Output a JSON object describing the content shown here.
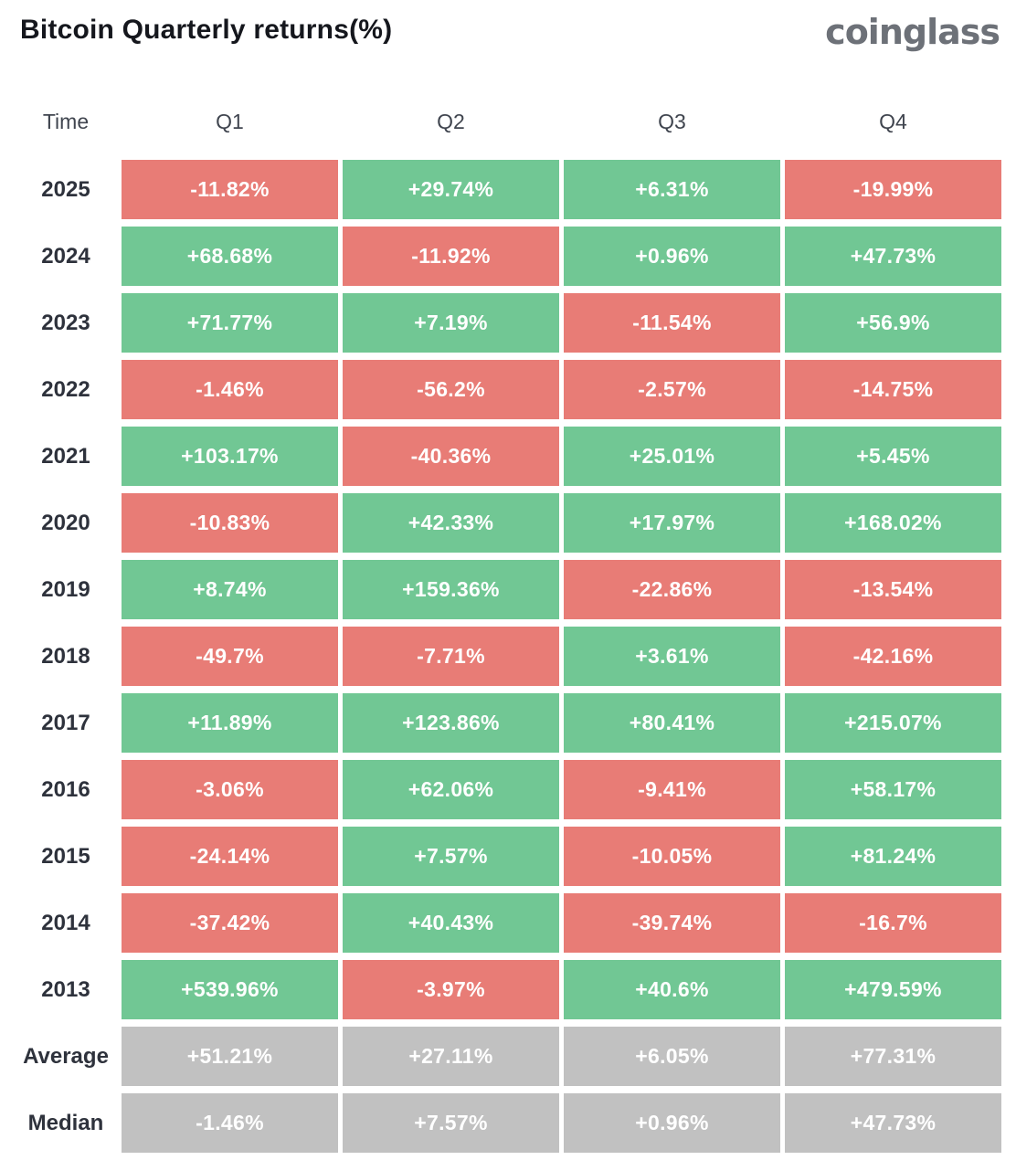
{
  "header": {
    "title": "Bitcoin Quarterly returns(%)",
    "logo_text": "coinglass"
  },
  "colors": {
    "positive": "#71c794",
    "negative": "#e87c76",
    "neutral": "#c1c1c1",
    "title_text": "#15171d",
    "logo_text": "#6d7178",
    "cell_text": "#ffffff"
  },
  "chart_data": {
    "type": "heatmap",
    "title": "Bitcoin Quarterly returns(%)",
    "columns": [
      "Time",
      "Q1",
      "Q2",
      "Q3",
      "Q4"
    ],
    "legend": "green = positive return, red = negative return, gray = summary statistics",
    "rows": [
      {
        "label": "2025",
        "kind": "year",
        "values": [
          "-11.82%",
          "+29.74%",
          "+6.31%",
          "-19.99%"
        ]
      },
      {
        "label": "2024",
        "kind": "year",
        "values": [
          "+68.68%",
          "-11.92%",
          "+0.96%",
          "+47.73%"
        ]
      },
      {
        "label": "2023",
        "kind": "year",
        "values": [
          "+71.77%",
          "+7.19%",
          "-11.54%",
          "+56.9%"
        ]
      },
      {
        "label": "2022",
        "kind": "year",
        "values": [
          "-1.46%",
          "-56.2%",
          "-2.57%",
          "-14.75%"
        ]
      },
      {
        "label": "2021",
        "kind": "year",
        "values": [
          "+103.17%",
          "-40.36%",
          "+25.01%",
          "+5.45%"
        ]
      },
      {
        "label": "2020",
        "kind": "year",
        "values": [
          "-10.83%",
          "+42.33%",
          "+17.97%",
          "+168.02%"
        ]
      },
      {
        "label": "2019",
        "kind": "year",
        "values": [
          "+8.74%",
          "+159.36%",
          "-22.86%",
          "-13.54%"
        ]
      },
      {
        "label": "2018",
        "kind": "year",
        "values": [
          "-49.7%",
          "-7.71%",
          "+3.61%",
          "-42.16%"
        ]
      },
      {
        "label": "2017",
        "kind": "year",
        "values": [
          "+11.89%",
          "+123.86%",
          "+80.41%",
          "+215.07%"
        ]
      },
      {
        "label": "2016",
        "kind": "year",
        "values": [
          "-3.06%",
          "+62.06%",
          "-9.41%",
          "+58.17%"
        ]
      },
      {
        "label": "2015",
        "kind": "year",
        "values": [
          "-24.14%",
          "+7.57%",
          "-10.05%",
          "+81.24%"
        ]
      },
      {
        "label": "2014",
        "kind": "year",
        "values": [
          "-37.42%",
          "+40.43%",
          "-39.74%",
          "-16.7%"
        ]
      },
      {
        "label": "2013",
        "kind": "year",
        "values": [
          "+539.96%",
          "-3.97%",
          "+40.6%",
          "+479.59%"
        ]
      },
      {
        "label": "Average",
        "kind": "summary",
        "values": [
          "+51.21%",
          "+27.11%",
          "+6.05%",
          "+77.31%"
        ]
      },
      {
        "label": "Median",
        "kind": "summary",
        "values": [
          "-1.46%",
          "+7.57%",
          "+0.96%",
          "+47.73%"
        ]
      }
    ]
  }
}
